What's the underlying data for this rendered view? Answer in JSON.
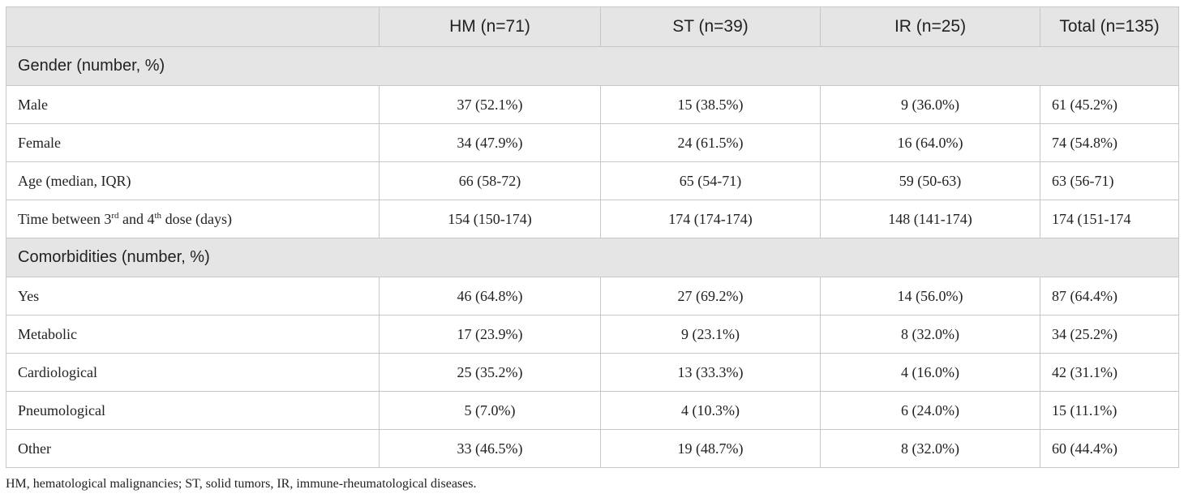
{
  "header": {
    "blank": "",
    "hm": "HM (n=71)",
    "st": "ST (n=39)",
    "ir": "IR (n=25)",
    "total": "Total (n=135)"
  },
  "sections": {
    "gender": "Gender (number, %)",
    "comorbidities": "Comorbidities (number, %)"
  },
  "rows": {
    "male": {
      "label": "Male",
      "hm": "37 (52.1%)",
      "st": "15 (38.5%)",
      "ir": "9 (36.0%)",
      "total": "61 (45.2%)"
    },
    "female": {
      "label": "Female",
      "hm": "34 (47.9%)",
      "st": "24 (61.5%)",
      "ir": "16 (64.0%)",
      "total": "74 (54.8%)"
    },
    "age": {
      "label": "Age (median, IQR)",
      "hm": "66 (58-72)",
      "st": "65 (54-71)",
      "ir": "59 (50-63)",
      "total": "63 (56-71)"
    },
    "time": {
      "label_a": "Time between 3",
      "sup_a": "rd",
      "label_b": " and 4",
      "sup_b": "th",
      "label_c": " dose (days)",
      "hm": "154 (150-174)",
      "st": "174 (174-174)",
      "ir": "148 (141-174)",
      "total": "174 (151-174"
    },
    "yes": {
      "label": "Yes",
      "hm": "46 (64.8%)",
      "st": "27 (69.2%)",
      "ir": "14 (56.0%)",
      "total": "87 (64.4%)"
    },
    "metabolic": {
      "label": "Metabolic",
      "hm": "17 (23.9%)",
      "st": "9 (23.1%)",
      "ir": "8 (32.0%)",
      "total": "34 (25.2%)"
    },
    "cardiological": {
      "label": "Cardiological",
      "hm": "25 (35.2%)",
      "st": "13 (33.3%)",
      "ir": "4 (16.0%)",
      "total": "42 (31.1%)"
    },
    "pneumological": {
      "label": "Pneumological",
      "hm": "5 (7.0%)",
      "st": "4 (10.3%)",
      "ir": "6 (24.0%)",
      "total": "15 (11.1%)"
    },
    "other": {
      "label": "Other",
      "hm": "33 (46.5%)",
      "st": "19 (48.7%)",
      "ir": "8 (32.0%)",
      "total": "60 (44.4%)"
    }
  },
  "footnote": "HM, hematological malignancies; ST, solid tumors, IR, immune-rheumatological diseases."
}
